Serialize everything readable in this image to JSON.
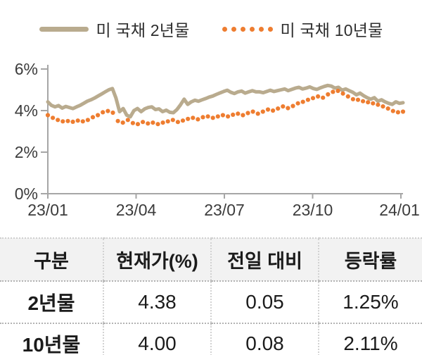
{
  "colors": {
    "axis": "#a6a6a6",
    "text": "#3c3c3c",
    "series_2yr": "#b9ab8e",
    "series_10yr": "#ee7d30",
    "table_header_bg": "#f2f2f2"
  },
  "chart_data": {
    "type": "line",
    "title": "",
    "xlabel": "",
    "ylabel": "",
    "ylim": [
      0,
      6
    ],
    "y_ticks": [
      "6%",
      "4%",
      "2%",
      "0%"
    ],
    "y_tick_values": [
      6,
      4,
      2,
      0
    ],
    "x_ticks": [
      "23/01",
      "23/04",
      "23/07",
      "23/10",
      "24/01"
    ],
    "legend_position": "top",
    "grid": false,
    "series": [
      {
        "name": "미 국채 2년물",
        "color": "#b9ab8e",
        "style": "solid",
        "values": [
          4.42,
          4.25,
          4.18,
          4.24,
          4.12,
          4.2,
          4.15,
          4.1,
          4.18,
          4.25,
          4.35,
          4.45,
          4.52,
          4.6,
          4.7,
          4.8,
          4.9,
          5.0,
          5.06,
          4.6,
          3.95,
          4.1,
          3.78,
          3.7,
          4.0,
          4.1,
          3.95,
          4.08,
          4.15,
          4.18,
          4.05,
          4.08,
          3.95,
          4.02,
          3.92,
          3.9,
          4.05,
          4.28,
          4.55,
          4.3,
          4.42,
          4.5,
          4.45,
          4.52,
          4.58,
          4.65,
          4.7,
          4.78,
          4.85,
          4.92,
          4.98,
          4.88,
          4.82,
          4.9,
          4.94,
          4.84,
          4.9,
          4.96,
          4.9,
          4.9,
          4.86,
          4.92,
          4.98,
          4.92,
          4.96,
          5.0,
          5.04,
          4.96,
          5.02,
          5.08,
          5.12,
          5.04,
          5.08,
          5.14,
          5.06,
          5.02,
          5.1,
          5.16,
          5.21,
          5.18,
          5.08,
          5.12,
          4.98,
          5.04,
          4.96,
          4.88,
          4.76,
          4.84,
          4.72,
          4.62,
          4.55,
          4.62,
          4.45,
          4.52,
          4.42,
          4.35,
          4.3,
          4.42,
          4.35,
          4.38
        ]
      },
      {
        "name": "미 국채 10년물",
        "color": "#ee7d30",
        "style": "dotted",
        "values": [
          3.78,
          3.65,
          3.55,
          3.48,
          3.5,
          3.46,
          3.52,
          3.48,
          3.55,
          3.68,
          3.78,
          3.92,
          3.98,
          3.9,
          3.5,
          3.42,
          3.55,
          3.4,
          3.35,
          3.45,
          3.38,
          3.42,
          3.35,
          3.42,
          3.48,
          3.55,
          3.45,
          3.52,
          3.6,
          3.65,
          3.58,
          3.68,
          3.72,
          3.65,
          3.72,
          3.78,
          3.72,
          3.8,
          3.85,
          3.78,
          3.88,
          3.95,
          3.85,
          3.95,
          4.05,
          4.0,
          4.1,
          4.2,
          4.12,
          4.22,
          4.35,
          4.42,
          4.52,
          4.6,
          4.68,
          4.62,
          4.78,
          4.9,
          4.95,
          4.82,
          4.68,
          4.55,
          4.52,
          4.45,
          4.4,
          4.35,
          4.28,
          4.2,
          4.1,
          3.98,
          3.92,
          3.95
        ]
      }
    ]
  },
  "table": {
    "columns": [
      "구분",
      "현재가(%)",
      "전일 대비",
      "등락률"
    ],
    "rows": [
      [
        "2년물",
        "4.38",
        "0.05",
        "1.25%"
      ],
      [
        "10년물",
        "4.00",
        "0.08",
        "2.11%"
      ]
    ]
  }
}
